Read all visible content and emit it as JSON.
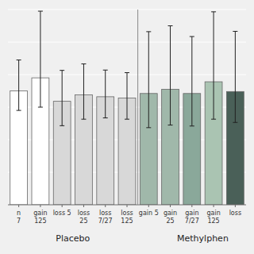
{
  "chart_data": {
    "type": "bar",
    "categories": [
      "n\n7",
      "gain\n125",
      "loss 5",
      "loss\n25",
      "loss\n7/27",
      "loss\n125",
      "gain 5",
      "gain\n25",
      "gain\n7/27",
      "gain\n125",
      "loss"
    ],
    "values": [
      350,
      390,
      318,
      338,
      332,
      328,
      342,
      355,
      342,
      378,
      348
    ],
    "errors_upper": [
      95,
      205,
      95,
      95,
      82,
      78,
      190,
      195,
      175,
      215,
      185
    ],
    "errors_lower": [
      60,
      90,
      75,
      75,
      65,
      65,
      105,
      110,
      100,
      115,
      95
    ],
    "colors": [
      "#ffffff",
      "#ffffff",
      "#d8d8d8",
      "#d8d8d8",
      "#d8d8d8",
      "#d8d8d8",
      "#a0b8aa",
      "#a0b8aa",
      "#8aa89a",
      "#aac4b2",
      "#4a6058"
    ],
    "ylim": [
      0,
      600
    ],
    "yticks": [
      0,
      100,
      200,
      300,
      400,
      500,
      600
    ],
    "grid": true,
    "tick_labels": "x",
    "annotations": [
      {
        "type": "vline",
        "x": 5.5
      },
      {
        "type": "text",
        "text": "Placebo",
        "x": 2.5
      },
      {
        "type": "text",
        "text": "Methylphen",
        "x": 8.5
      }
    ]
  }
}
